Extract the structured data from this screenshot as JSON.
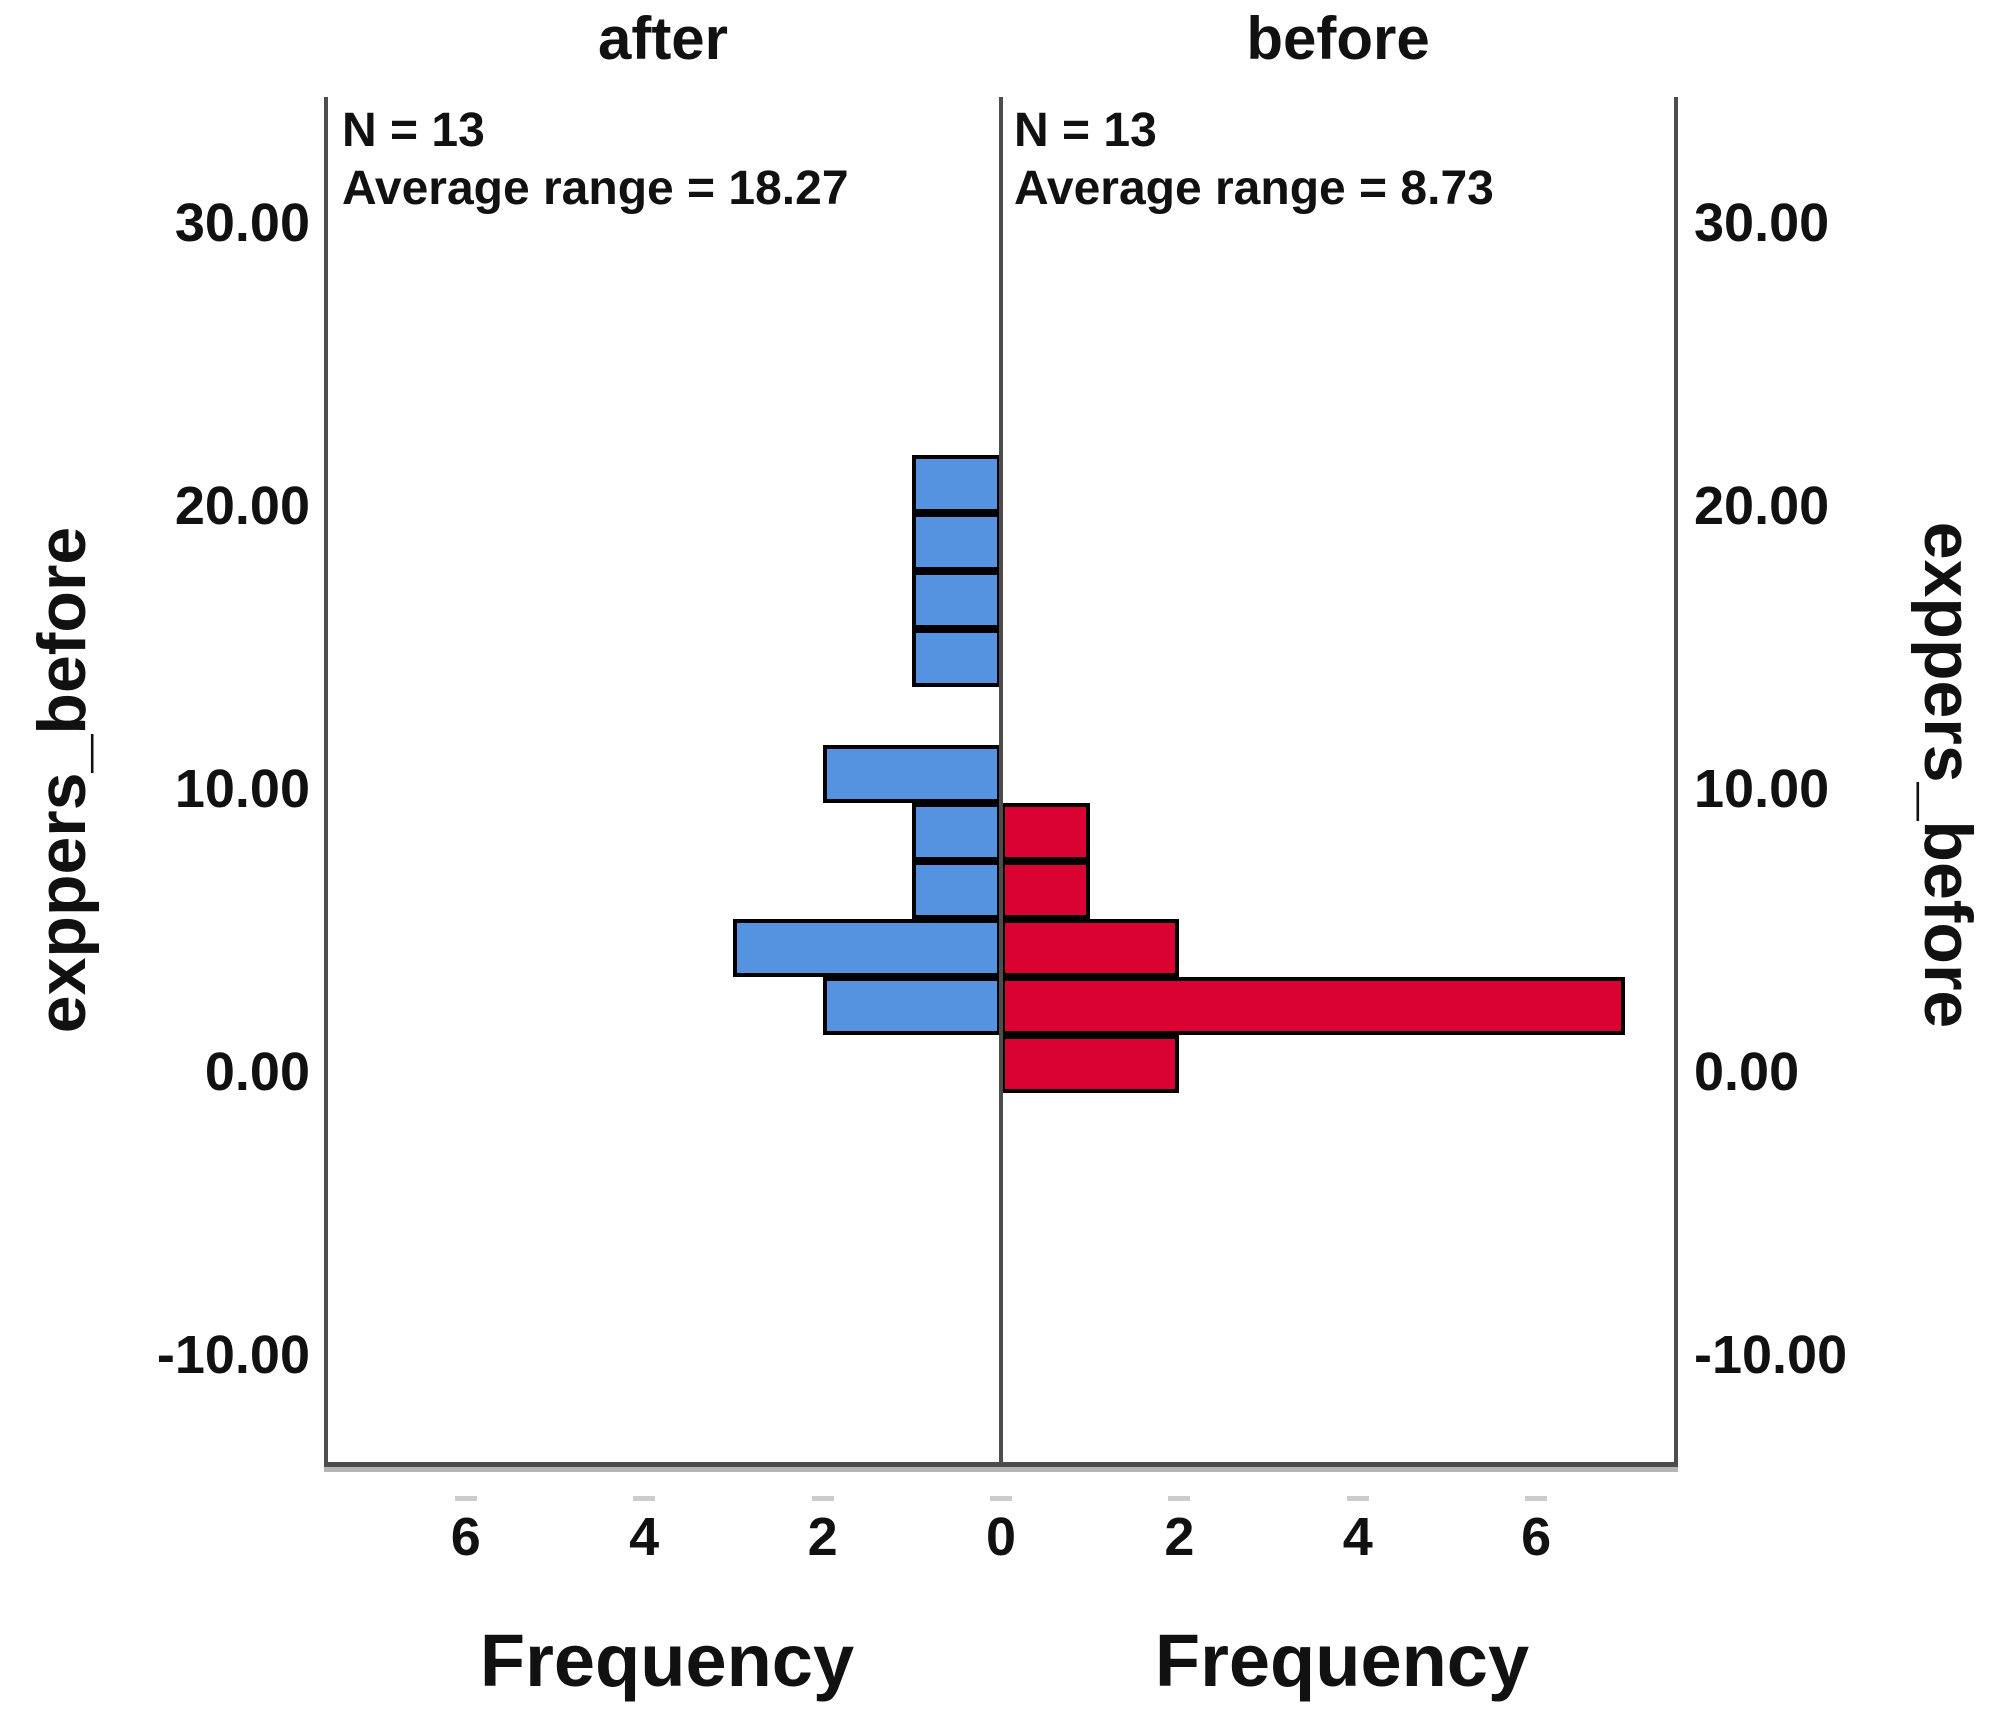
{
  "figure": {
    "background": "#ffffff"
  },
  "chart_data": {
    "type": "bar",
    "subtype": "back-to-back-histogram-population-pyramid",
    "orientation": "horizontal",
    "value_axis": {
      "label": "exppers_before",
      "tick_labels": [
        "30.00",
        "20.00",
        "10.00",
        "0.00",
        "-10.00"
      ],
      "tick_values": [
        30,
        20,
        10,
        0,
        -10
      ],
      "range": [
        -13.9,
        34.5
      ]
    },
    "frequency_axis": {
      "label": "Frequency",
      "tick_values": [
        0,
        2,
        4,
        6
      ],
      "visible_tick_labels_left_to_right": [
        "6",
        "4",
        "2",
        "0",
        "2",
        "4",
        "6"
      ],
      "max": 7.55
    },
    "bin_edges": [
      -0.75,
      1.3,
      3.35,
      5.4,
      7.45,
      9.5,
      11.55,
      13.6,
      15.65,
      17.7,
      19.75,
      21.8
    ],
    "panels": [
      {
        "title": "after",
        "side": "left",
        "bar_color": "#5592df",
        "stats": {
          "n_label": "N = 13",
          "n": 13,
          "average_range_label": "Average range = 18.27",
          "average_range": 18.27
        },
        "frequencies": [
          0,
          2,
          3,
          1,
          1,
          2,
          0,
          1,
          1,
          1,
          1
        ]
      },
      {
        "title": "before",
        "side": "right",
        "bar_color": "#da0233",
        "stats": {
          "n_label": "N = 13",
          "n": 13,
          "average_range_label": "Average range = 8.73",
          "average_range": 8.73
        },
        "frequencies": [
          2,
          7,
          2,
          1,
          1,
          0,
          0,
          0,
          0,
          0,
          0
        ]
      }
    ],
    "style": {
      "bar_border_color": "#000000",
      "frame_color": "#4d4d4d",
      "frame_shadow_color": "#b5b5b5",
      "tick_mark_color": "#cccccc",
      "text_color": "#111111"
    },
    "legend": "none",
    "grid": "off"
  }
}
